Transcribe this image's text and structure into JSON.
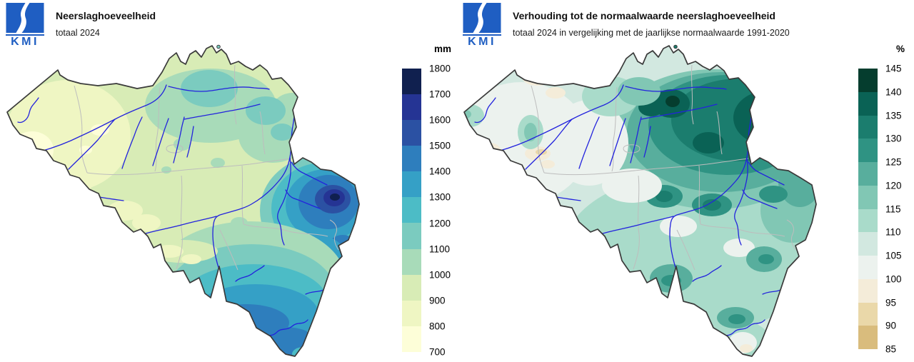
{
  "panels": {
    "left": {
      "logo_text": "KMI",
      "title": "Neerslaghoeveelheid",
      "subtitle": "totaal 2024",
      "legend": {
        "unit": "mm",
        "labels": [
          "1800",
          "1700",
          "1600",
          "1500",
          "1400",
          "1300",
          "1200",
          "1100",
          "1000",
          "900",
          "800",
          "700"
        ],
        "colors": [
          "#10204f",
          "#253494",
          "#2b51a3",
          "#2e7ebd",
          "#35a0c6",
          "#4cbcc6",
          "#7bcbbf",
          "#a8dbb9",
          "#d8ecb6",
          "#eff6c3",
          "#fdfed8"
        ]
      }
    },
    "right": {
      "logo_text": "KMI",
      "title": "Verhouding tot de normaalwaarde neerslaghoeveelheid",
      "subtitle": "totaal 2024 in vergelijking met de jaarlijkse normaalwaarde 1991-2020",
      "legend": {
        "unit": "%",
        "labels": [
          "145",
          "140",
          "135",
          "130",
          "125",
          "120",
          "115",
          "110",
          "105",
          "100",
          "95",
          "90",
          "85"
        ],
        "colors": [
          "#053d2e",
          "#0a6255",
          "#1b7d6e",
          "#2f9383",
          "#58ae9d",
          "#81c7b4",
          "#a9dbca",
          "#d2e8e0",
          "#ecf2ee",
          "#f4ecd9",
          "#ead8a9",
          "#d9bc7d"
        ]
      }
    }
  },
  "map": {
    "colors": {
      "outline": "#3a3a3a",
      "river": "#2323dd",
      "boundary": "#bdbdbd",
      "logo": "#1f5ec2"
    }
  }
}
